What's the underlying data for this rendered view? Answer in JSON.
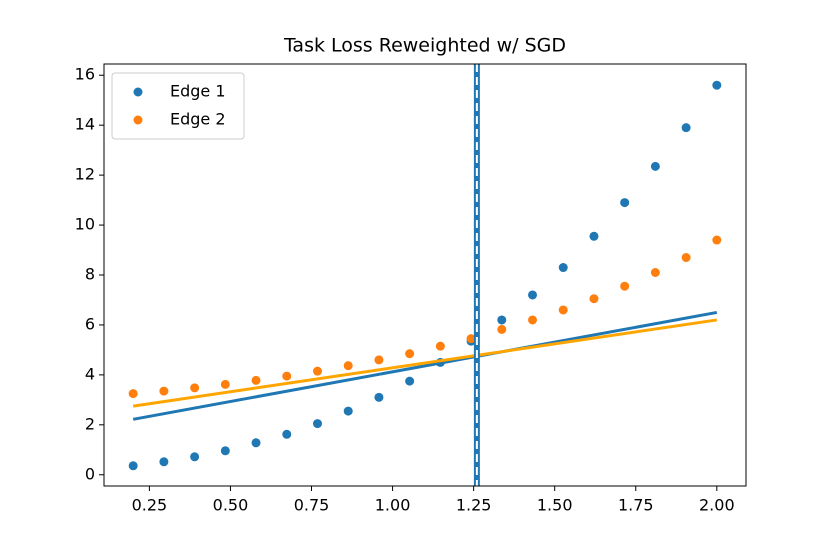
{
  "chart_data": {
    "type": "scatter",
    "title": "Task Loss Reweighted w/ SGD",
    "x": [
      0.2,
      0.2947,
      0.3895,
      0.4842,
      0.5789,
      0.6737,
      0.7684,
      0.8632,
      0.9579,
      1.0526,
      1.1474,
      1.2421,
      1.3368,
      1.4316,
      1.5263,
      1.6211,
      1.7158,
      1.8105,
      1.9053,
      2.0
    ],
    "series": [
      {
        "name": "Edge 1",
        "color": "#1f77b4",
        "values": [
          0.36,
          0.52,
          0.72,
          0.96,
          1.28,
          1.62,
          2.05,
          2.55,
          3.1,
          3.75,
          4.5,
          5.35,
          6.2,
          7.2,
          8.3,
          9.55,
          10.9,
          12.35,
          13.9,
          15.6
        ]
      },
      {
        "name": "Edge 2",
        "color": "#ff7f0e",
        "values": [
          3.25,
          3.35,
          3.48,
          3.62,
          3.78,
          3.95,
          4.15,
          4.37,
          4.6,
          4.85,
          5.15,
          5.45,
          5.82,
          6.2,
          6.6,
          7.05,
          7.55,
          8.1,
          8.7,
          9.4
        ]
      }
    ],
    "lines": [
      {
        "color": "#1f77b4",
        "x": [
          0.2,
          2.0
        ],
        "values": [
          2.22,
          6.5
        ]
      },
      {
        "color": "#ffa500",
        "x": [
          0.2,
          2.0
        ],
        "values": [
          2.75,
          6.2
        ]
      }
    ],
    "vline": {
      "x": 1.26,
      "color": "#1f77b4",
      "dash_color": "#ffffff"
    },
    "xlim": [
      0.11,
      2.09
    ],
    "ylim": [
      -0.45,
      16.45
    ],
    "xticks": [
      {
        "value": 0.25,
        "label": "0.25"
      },
      {
        "value": 0.5,
        "label": "0.50"
      },
      {
        "value": 0.75,
        "label": "0.75"
      },
      {
        "value": 1.0,
        "label": "1.00"
      },
      {
        "value": 1.25,
        "label": "1.25"
      },
      {
        "value": 1.5,
        "label": "1.50"
      },
      {
        "value": 1.75,
        "label": "1.75"
      },
      {
        "value": 2.0,
        "label": "2.00"
      }
    ],
    "yticks": [
      0,
      2,
      4,
      6,
      8,
      10,
      12,
      14,
      16
    ],
    "legend": "upper left"
  }
}
